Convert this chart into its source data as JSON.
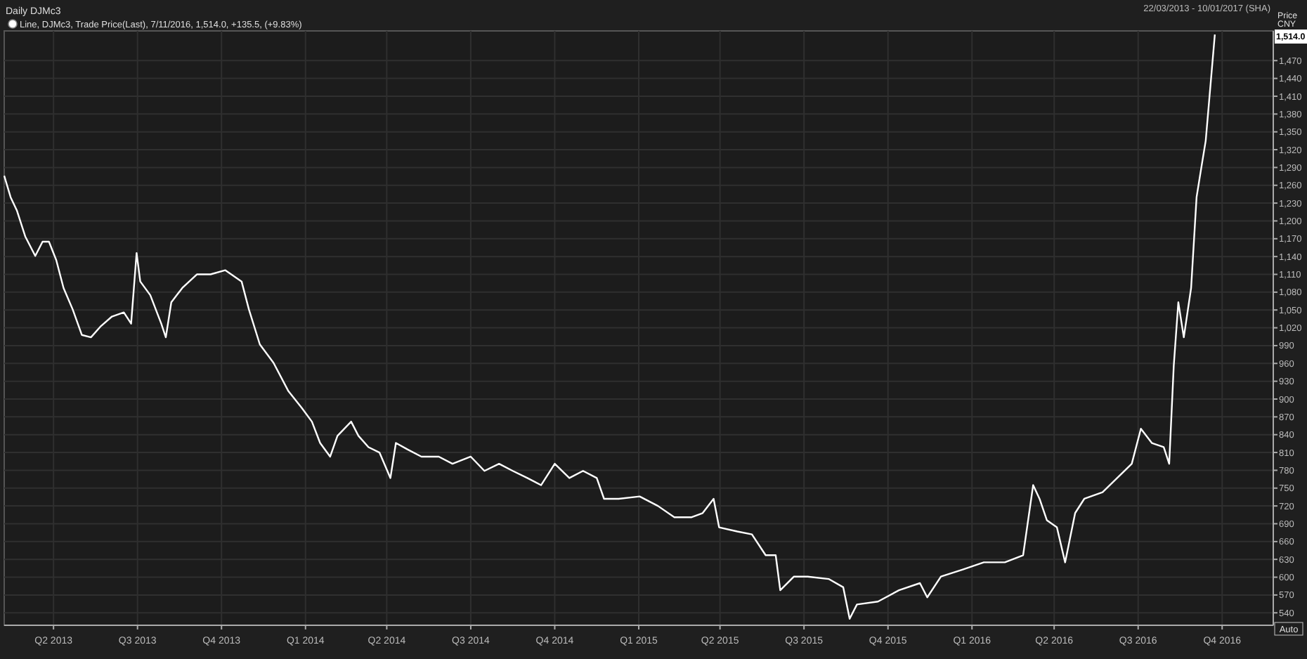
{
  "chart_data": {
    "type": "line",
    "title": "Daily DJMc3",
    "subtitle": "22/03/2013 - 10/01/2017 (SHA)",
    "ylabel": "Price CNY",
    "legend": "top left",
    "grid": true,
    "marker": "none",
    "line_style": "solid",
    "annotations": [
      "1,514.0",
      "Auto"
    ],
    "xlim": [
      "2013-03-22",
      "2017-01-10"
    ],
    "xticks": [
      {
        "value": "2013-05-15",
        "label": "Q2 2013"
      },
      {
        "value": "2013-08-15",
        "label": "Q3 2013"
      },
      {
        "value": "2013-11-15",
        "label": "Q4 2013"
      },
      {
        "value": "2014-02-15",
        "label": "Q1 2014"
      },
      {
        "value": "2014-05-15",
        "label": "Q2 2014"
      },
      {
        "value": "2014-08-15",
        "label": "Q3 2014"
      },
      {
        "value": "2014-11-15",
        "label": "Q4 2014"
      },
      {
        "value": "2015-02-15",
        "label": "Q1 2015"
      },
      {
        "value": "2015-05-15",
        "label": "Q2 2015"
      },
      {
        "value": "2015-08-15",
        "label": "Q3 2015"
      },
      {
        "value": "2015-11-15",
        "label": "Q4 2015"
      },
      {
        "value": "2016-02-15",
        "label": "Q1 2016"
      },
      {
        "value": "2016-05-15",
        "label": "Q2 2016"
      },
      {
        "value": "2016-08-15",
        "label": "Q3 2016"
      },
      {
        "value": "2016-11-15",
        "label": "Q4 2016"
      }
    ],
    "ylim": [
      519,
      1520
    ],
    "yticks": [
      540,
      570,
      600,
      630,
      660,
      690,
      720,
      750,
      780,
      810,
      840,
      870,
      900,
      930,
      960,
      990,
      {
        "value": 1020,
        "label": "1,020"
      },
      {
        "value": 1050,
        "label": "1,050"
      },
      {
        "value": 1080,
        "label": "1,080"
      },
      {
        "value": 1110,
        "label": "1,110"
      },
      {
        "value": 1140,
        "label": "1,140"
      },
      {
        "value": 1170,
        "label": "1,170"
      },
      {
        "value": 1200,
        "label": "1,200"
      },
      {
        "value": 1230,
        "label": "1,230"
      },
      {
        "value": 1260,
        "label": "1,260"
      },
      {
        "value": 1290,
        "label": "1,290"
      },
      {
        "value": 1320,
        "label": "1,320"
      },
      {
        "value": 1350,
        "label": "1,350"
      },
      {
        "value": 1380,
        "label": "1,380"
      },
      {
        "value": 1410,
        "label": "1,410"
      },
      {
        "value": 1440,
        "label": "1,440"
      },
      {
        "value": 1470,
        "label": "1,470"
      }
    ],
    "series": [
      {
        "name": "Line, DJMc3, Trade Price(Last), 7/11/2016, 1,514.0, +135.5, (+9.83%)",
        "color": "#ffffff",
        "x": [
          "2013-03-22",
          "2013-03-29",
          "2013-04-05",
          "2013-04-14",
          "2013-04-25",
          "2013-05-03",
          "2013-05-10",
          "2013-05-18",
          "2013-05-26",
          "2013-06-05",
          "2013-06-15",
          "2013-06-25",
          "2013-07-06",
          "2013-07-18",
          "2013-07-31",
          "2013-08-08",
          "2013-08-14",
          "2013-08-18",
          "2013-08-29",
          "2013-09-10",
          "2013-09-15",
          "2013-09-21",
          "2013-10-03",
          "2013-10-19",
          "2013-11-03",
          "2013-11-19",
          "2013-12-07",
          "2013-12-15",
          "2013-12-27",
          "2014-01-11",
          "2014-01-27",
          "2014-02-11",
          "2014-02-22",
          "2014-03-03",
          "2014-03-14",
          "2014-03-22",
          "2014-04-06",
          "2014-04-14",
          "2014-04-25",
          "2014-05-07",
          "2014-05-19",
          "2014-05-25",
          "2014-06-07",
          "2014-06-22",
          "2014-07-11",
          "2014-07-26",
          "2014-08-15",
          "2014-08-30",
          "2014-09-15",
          "2014-09-30",
          "2014-10-16",
          "2014-10-31",
          "2014-11-15",
          "2014-12-01",
          "2014-12-16",
          "2014-12-31",
          "2015-01-08",
          "2015-01-24",
          "2015-02-16",
          "2015-03-08",
          "2015-03-26",
          "2015-04-14",
          "2015-04-26",
          "2015-05-08",
          "2015-05-14",
          "2015-06-03",
          "2015-06-19",
          "2015-07-04",
          "2015-07-15",
          "2015-07-20",
          "2015-08-04",
          "2015-08-19",
          "2015-09-11",
          "2015-09-27",
          "2015-10-04",
          "2015-10-12",
          "2015-11-04",
          "2015-11-27",
          "2015-12-20",
          "2015-12-28",
          "2016-01-12",
          "2016-02-05",
          "2016-02-28",
          "2016-03-22",
          "2016-04-11",
          "2016-04-22",
          "2016-04-29",
          "2016-05-07",
          "2016-05-18",
          "2016-05-27",
          "2016-06-07",
          "2016-06-17",
          "2016-07-07",
          "2016-07-23",
          "2016-08-08",
          "2016-08-18",
          "2016-08-30",
          "2016-09-12",
          "2016-09-18",
          "2016-09-23",
          "2016-09-28",
          "2016-10-04",
          "2016-10-12",
          "2016-10-18",
          "2016-10-23",
          "2016-10-28",
          "2016-11-07"
        ],
        "values": [
          1276,
          1240,
          1217,
          1174,
          1141,
          1165,
          1165,
          1134,
          1087,
          1051,
          1008,
          1004,
          1023,
          1039,
          1046,
          1027,
          1146,
          1098,
          1075,
          1027,
          1004,
          1063,
          1087,
          1110,
          1110,
          1117,
          1098,
          1051,
          992,
          961,
          914,
          885,
          862,
          826,
          803,
          838,
          862,
          838,
          819,
          810,
          767,
          826,
          815,
          803,
          803,
          791,
          803,
          779,
          791,
          779,
          767,
          755,
          791,
          767,
          779,
          767,
          732,
          732,
          736,
          720,
          701,
          701,
          708,
          732,
          684,
          677,
          672,
          637,
          637,
          578,
          601,
          601,
          597,
          583,
          530,
          554,
          559,
          578,
          590,
          566,
          601,
          613,
          625,
          625,
          637,
          755,
          732,
          696,
          684,
          625,
          708,
          732,
          743,
          767,
          791,
          850,
          826,
          819,
          791,
          956,
          1063,
          1004,
          1087,
          1240,
          1288,
          1335,
          1514
        ]
      }
    ]
  }
}
